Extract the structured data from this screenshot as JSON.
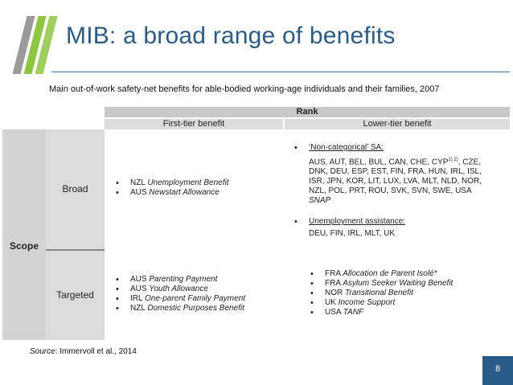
{
  "header": {
    "title": "MIB: a broad range of benefits",
    "subtitle": "Main out-of-work safety-net benefits for able-bodied working-age individuals and their families, 2007"
  },
  "table": {
    "rank_header": "Rank",
    "columns": [
      "First-tier benefit",
      "Lower-tier benefit"
    ],
    "scope_label": "Scope",
    "rows": {
      "broad": {
        "label": "Broad",
        "first_tier": [
          {
            "country": "NZL",
            "benefit": "Unemployment Benefit"
          },
          {
            "country": "AUS",
            "benefit": "Newstart Allowance"
          }
        ],
        "lower_tier": {
          "non_categorical_title": "‘Non-categorical’ SA:",
          "non_categorical_line1_prefix": "AUS, AUT, BEL, BUL, CAN, CHE, CYP",
          "non_categorical_sup": "1) 2)",
          "non_categorical_line1_suffix": ", CZE,",
          "non_categorical_line2": "DNK, DEU, ESP, EST, FIN, FRA, HUN, IRL, ISL,",
          "non_categorical_line3": "ISR, JPN, KOR, LIT, LUX, LVA, MLT, NLD, NOR,",
          "non_categorical_line4": "NZL, POL, PRT, ROU, SVK, SVN, SWE, USA",
          "non_categorical_line5": "SNAP",
          "unemployment_title": "Unemployment assistance:",
          "unemployment_countries": "DEU, FIN, IRL, MLT, UK"
        }
      },
      "targeted": {
        "label": "Targeted",
        "first_tier": [
          {
            "country": "AUS",
            "benefit": "Parenting Payment"
          },
          {
            "country": "AUS",
            "benefit": "Youth Allowance"
          },
          {
            "country": "IRL",
            "benefit": "One-parent Family Payment"
          },
          {
            "country": "NZL",
            "benefit": "Domestic Purposes Benefit"
          }
        ],
        "lower_tier": [
          {
            "country": "FRA",
            "benefit": "Allocation de Parent Isolé*"
          },
          {
            "country": "FRA",
            "benefit": "Asylum Seeker Waiting Benefit"
          },
          {
            "country": "NOR",
            "benefit": "Transitional Benefit"
          },
          {
            "country": "UK",
            "benefit": "Income Support"
          },
          {
            "country": "USA",
            "benefit": "TANF"
          }
        ]
      }
    }
  },
  "footer": {
    "source_label": "Source",
    "source_text": ": Immervoll et al., 2014",
    "page_number": "8"
  },
  "colors": {
    "title": "#2a5c8a",
    "logo_green": "#8dc63f",
    "logo_gray": "#9a9a9a",
    "badge": "#2a5c8a"
  }
}
